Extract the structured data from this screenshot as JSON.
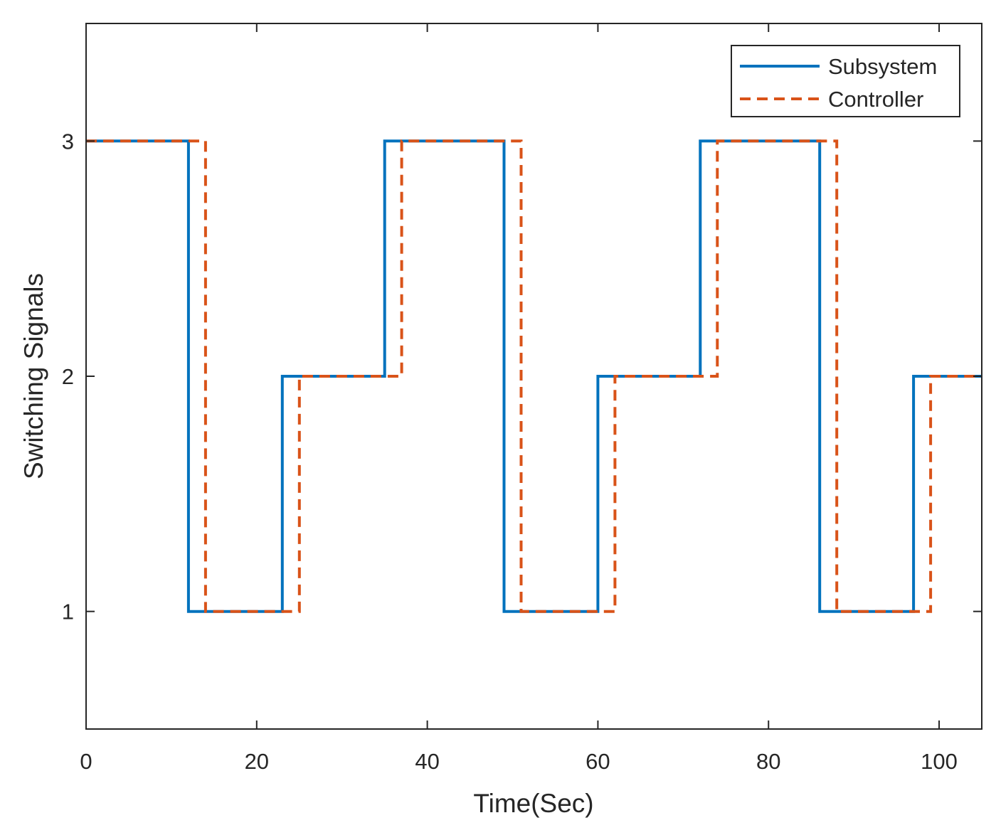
{
  "chart_data": {
    "type": "line",
    "title": "",
    "xlabel": "Time(Sec)",
    "ylabel": "Switching Signals",
    "xlim": [
      0,
      105
    ],
    "ylim": [
      0.5,
      3.5
    ],
    "xticks": [
      0,
      20,
      40,
      60,
      80,
      100
    ],
    "yticks": [
      1,
      2,
      3
    ],
    "grid": false,
    "legend_position": "top-right",
    "series": [
      {
        "name": "Subsystem",
        "style": "solid",
        "color": "#0072BD",
        "step": true,
        "x": [
          0,
          12,
          23,
          35,
          49,
          60,
          72,
          86,
          97,
          105
        ],
        "y": [
          3,
          1,
          2,
          3,
          1,
          2,
          3,
          1,
          2,
          2
        ]
      },
      {
        "name": "Controller",
        "style": "dashed",
        "color": "#D95319",
        "step": true,
        "x": [
          0,
          14,
          25,
          37,
          51,
          62,
          74,
          88,
          99,
          105
        ],
        "y": [
          3,
          1,
          2,
          3,
          1,
          2,
          3,
          1,
          2,
          2
        ]
      }
    ]
  }
}
